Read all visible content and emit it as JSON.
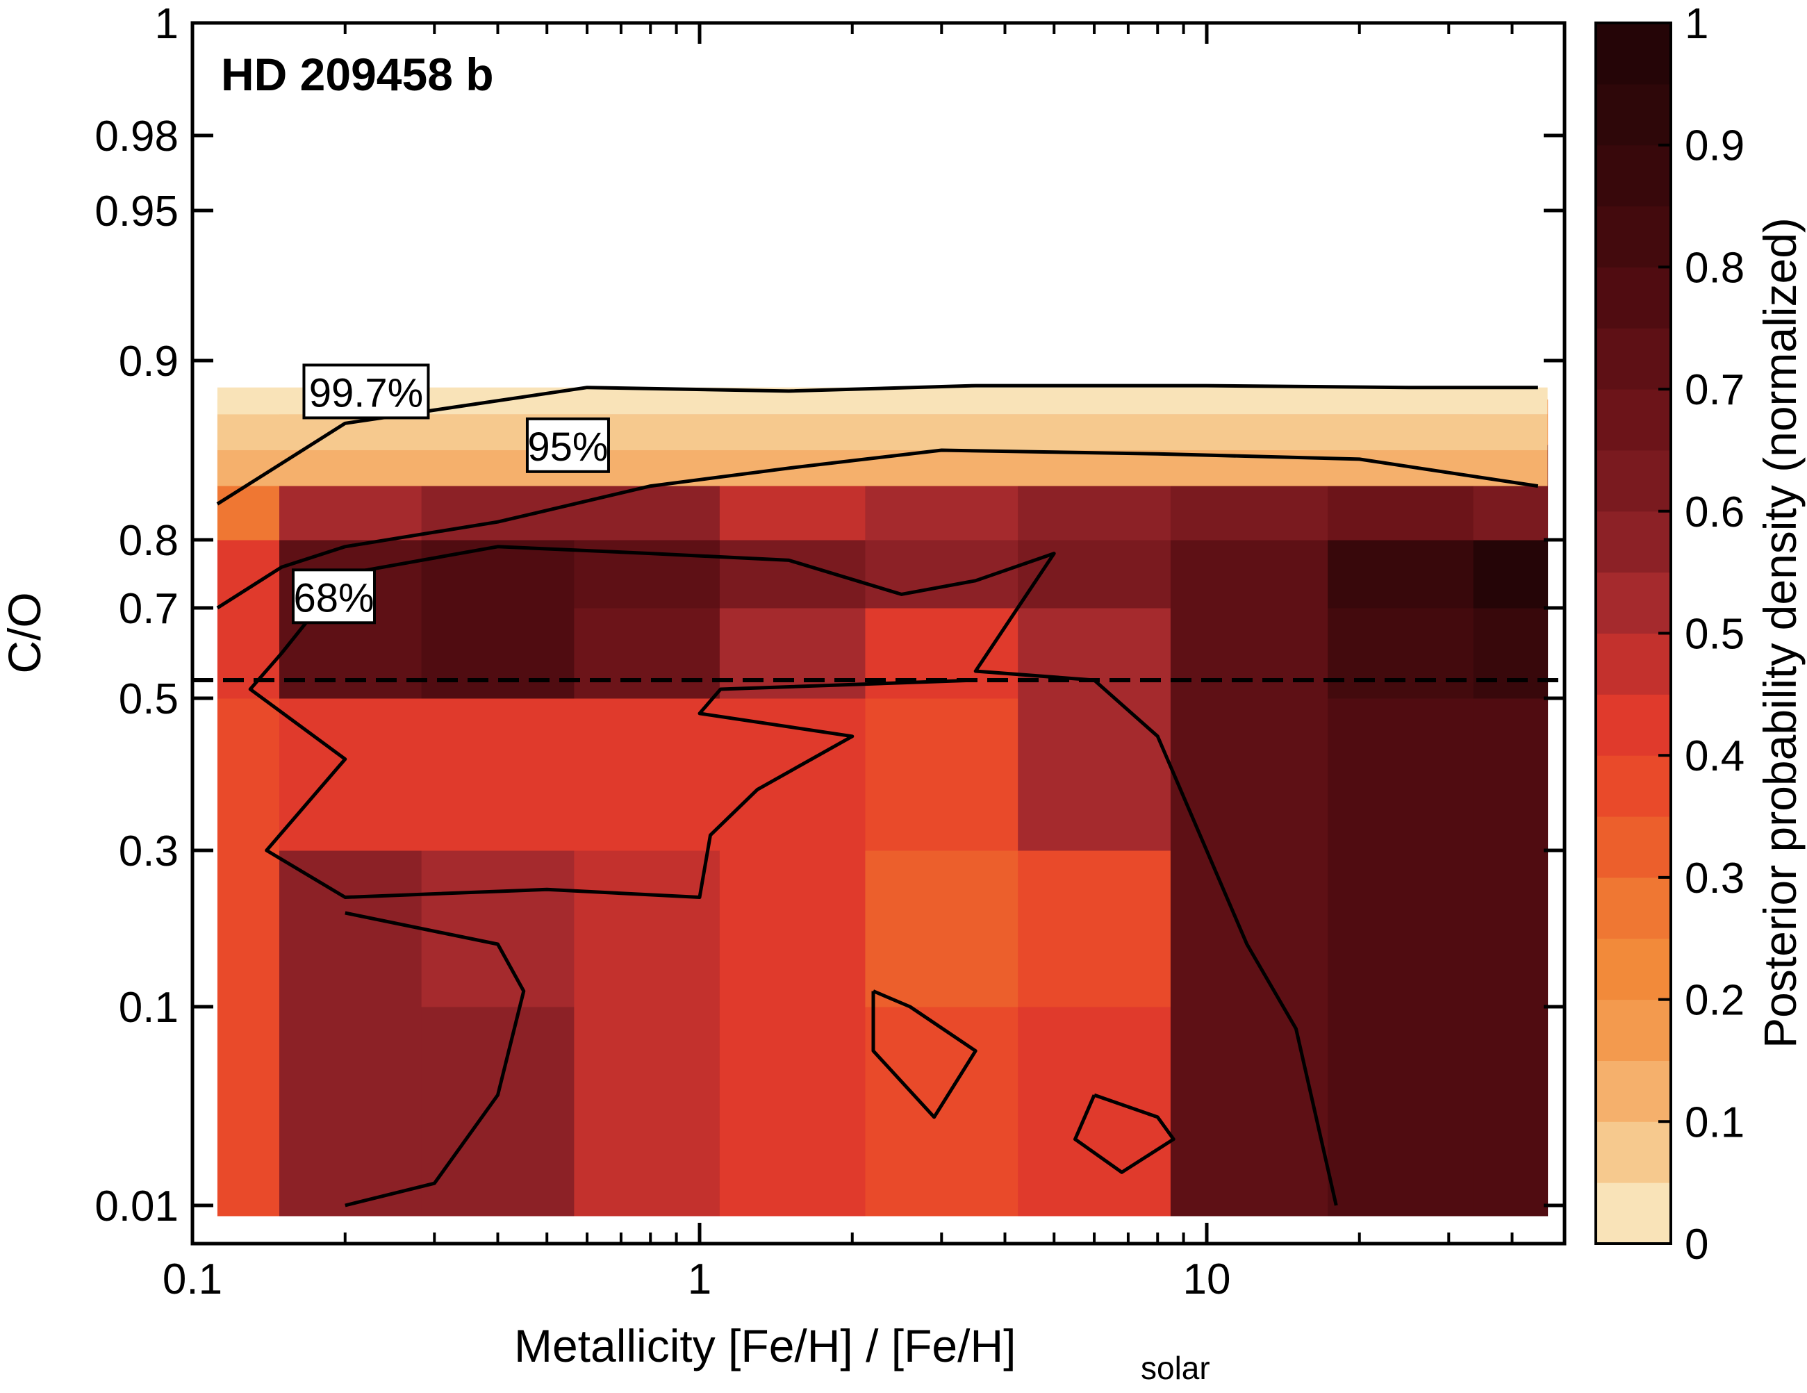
{
  "chart_data": {
    "type": "heatmap",
    "title": "HD 209458 b",
    "xlabel": "Metallicity [Fe/H] / [Fe/H]",
    "xlabel_subscript": "solar",
    "ylabel": "C/O",
    "colorbar_label": "Posterior probability density (normalized)",
    "x_scale": "log",
    "xlim": [
      0.1,
      50
    ],
    "y_ticks": [
      "0.01",
      "0.1",
      "0.3",
      "0.5",
      "0.7",
      "0.8",
      "0.9",
      "0.95",
      "0.98",
      "1"
    ],
    "x_ticks": [
      "0.1",
      "1",
      "10"
    ],
    "colorbar_ticks": [
      "0",
      "0.1",
      "0.2",
      "0.3",
      "0.4",
      "0.5",
      "0.6",
      "0.7",
      "0.8",
      "0.9",
      "1"
    ],
    "colorbar_levels": [
      0,
      0.05,
      0.1,
      0.15,
      0.2,
      0.25,
      0.3,
      0.35,
      0.4,
      0.45,
      0.5,
      0.55,
      0.6,
      0.65,
      0.7,
      0.75,
      0.8,
      0.85,
      0.9,
      0.95,
      1
    ],
    "colorbar_colors": [
      "#f9e3b8",
      "#f6c98e",
      "#f5b06c",
      "#f39a4e",
      "#f28a3a",
      "#ef7733",
      "#ec5f2c",
      "#e94a2a",
      "#e03a2c",
      "#c3312d",
      "#a52a2d",
      "#8c2126",
      "#7a1a1f",
      "#6c1419",
      "#5e1015",
      "#500c11",
      "#430a0d",
      "#38080b",
      "#2e0709",
      "#250507"
    ],
    "solar_c_to_o": 0.54,
    "grid_c_to_o": [
      "0.01",
      "0.1",
      "0.3",
      "0.5",
      "0.7",
      "0.8",
      "0.9"
    ],
    "grid_metallicity": [
      0.11,
      0.2,
      0.4,
      0.8,
      1.5,
      3,
      6,
      12,
      25,
      45
    ],
    "density": [
      [
        0.35,
        0.55,
        0.55,
        0.45,
        0.4,
        0.35,
        0.4,
        0.7,
        0.75,
        0.75
      ],
      [
        0.35,
        0.55,
        0.5,
        0.45,
        0.4,
        0.3,
        0.35,
        0.7,
        0.75,
        0.75
      ],
      [
        0.35,
        0.4,
        0.4,
        0.4,
        0.4,
        0.35,
        0.5,
        0.7,
        0.75,
        0.75
      ],
      [
        0.4,
        0.7,
        0.75,
        0.65,
        0.5,
        0.4,
        0.5,
        0.7,
        0.8,
        0.85
      ],
      [
        0.4,
        0.7,
        0.75,
        0.7,
        0.6,
        0.55,
        0.6,
        0.7,
        0.85,
        0.95
      ],
      [
        0.25,
        0.5,
        0.55,
        0.55,
        0.45,
        0.5,
        0.55,
        0.6,
        0.65,
        0.6
      ],
      [
        0.05,
        0.15,
        0.2,
        0.25,
        0.3,
        0.3,
        0.3,
        0.3,
        0.3,
        0.25
      ]
    ],
    "contour_labels": [
      "99.7%",
      "95%",
      "68%"
    ]
  }
}
